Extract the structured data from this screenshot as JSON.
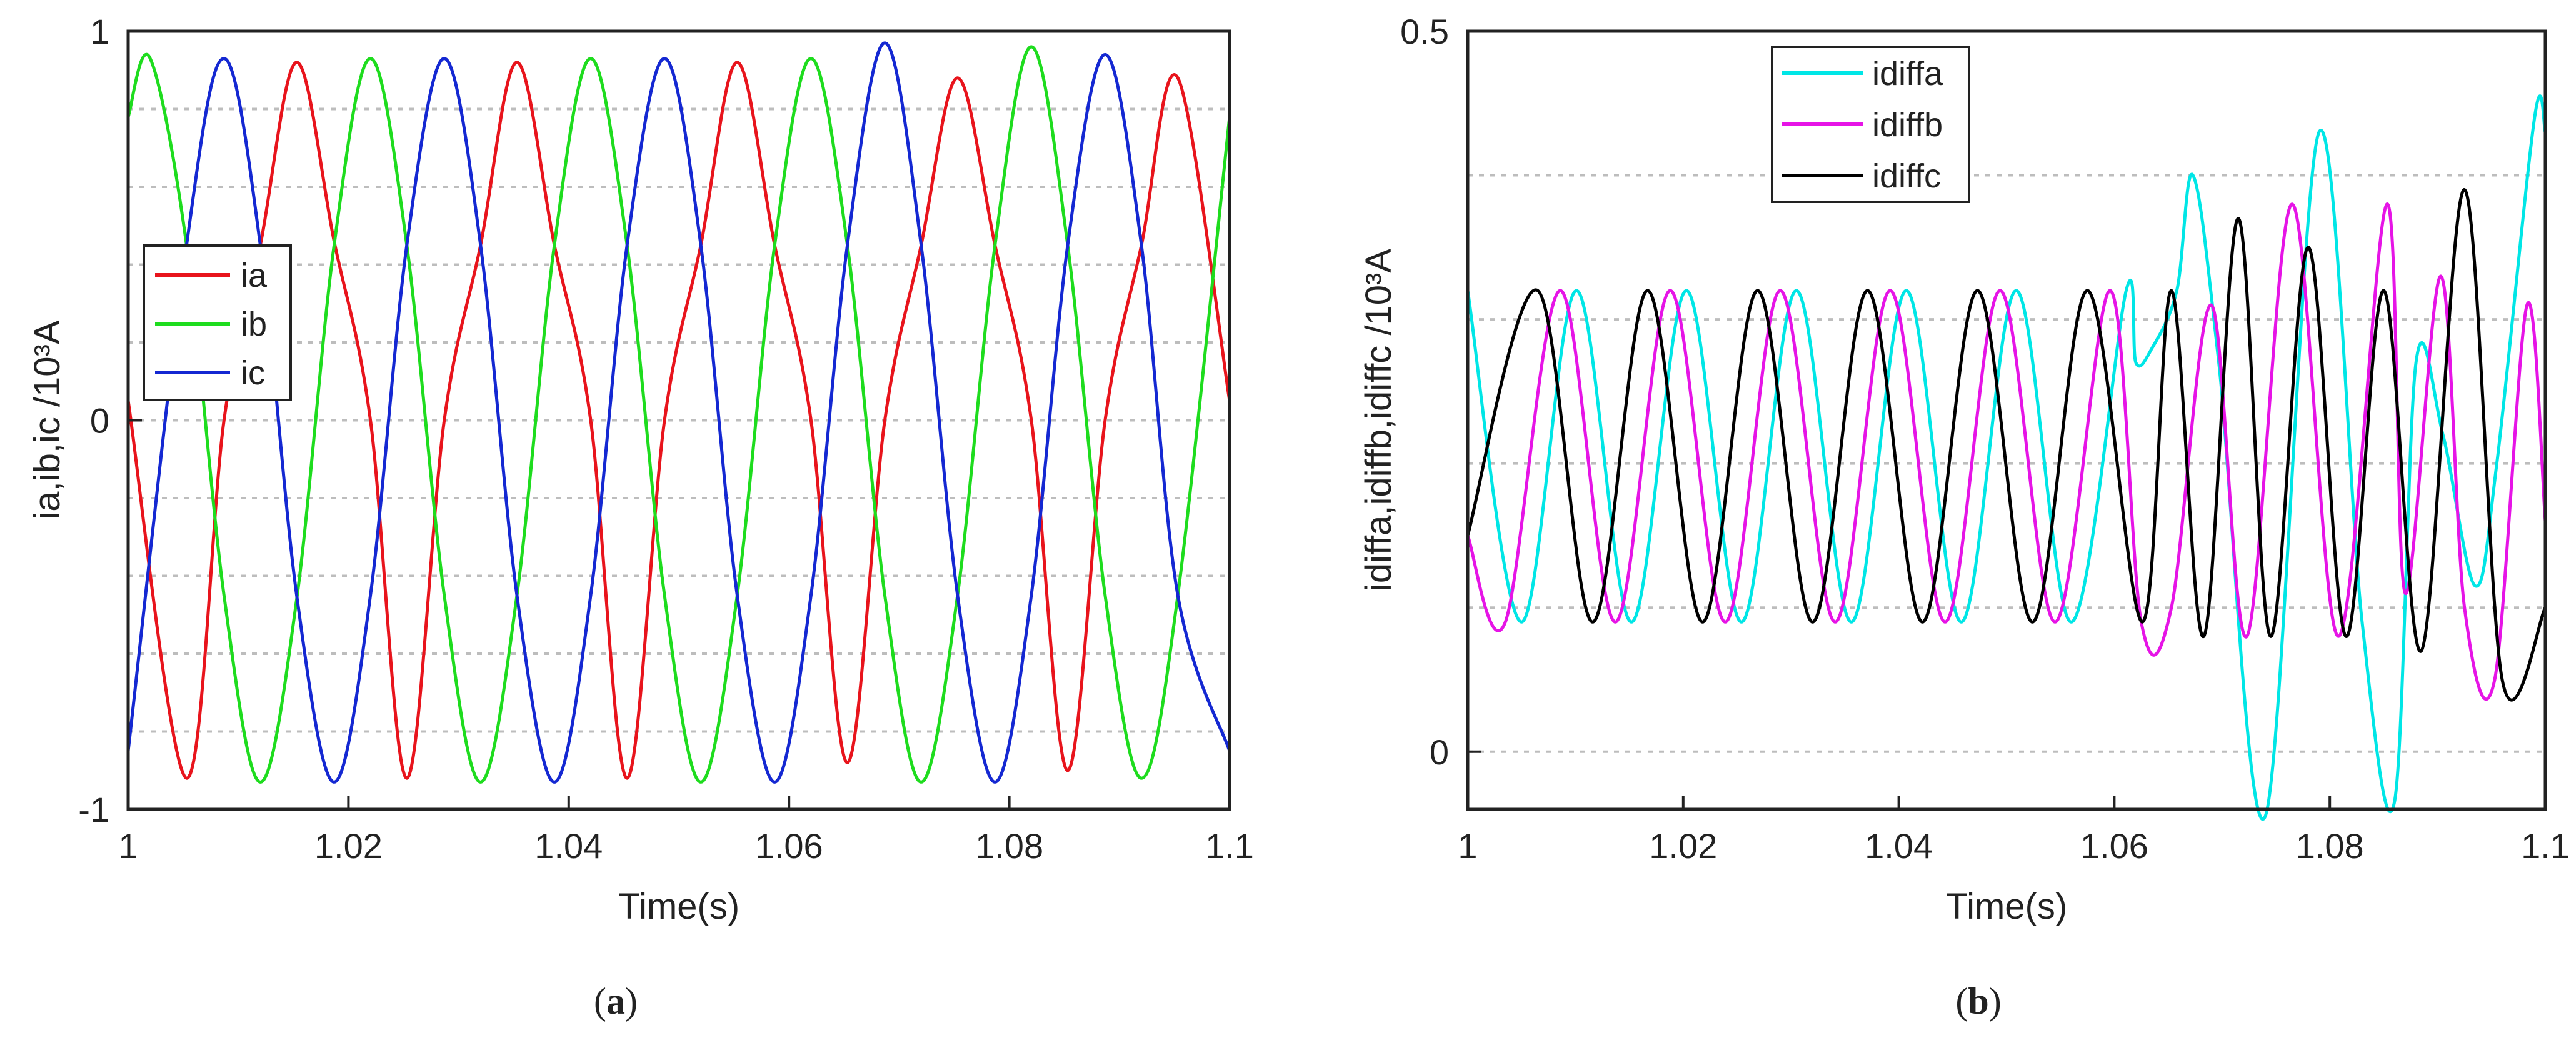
{
  "chart_data": [
    {
      "type": "line",
      "caption": "a",
      "xlabel": "Time(s)",
      "ylabel": "ia,ib,ic /10³A",
      "xlim": [
        1.0,
        1.1
      ],
      "ylim": [
        -1,
        1
      ],
      "xticks": [
        "1",
        "1.02",
        "1.04",
        "1.06",
        "1.08",
        "1.1"
      ],
      "yticks": [
        "-1",
        "0",
        "1"
      ],
      "grid_y": [
        -0.8,
        -0.6,
        -0.4,
        -0.2,
        0,
        0.2,
        0.4,
        0.6,
        0.8
      ],
      "legend_position": "upper-left",
      "series": [
        {
          "name": "ia",
          "color": "#e8141c",
          "x": [
            1.0,
            1.0053,
            1.0087,
            1.012,
            1.0153,
            1.0187,
            1.022,
            1.0253,
            1.0287,
            1.032,
            1.0353,
            1.0387,
            1.042,
            1.0453,
            1.0487,
            1.052,
            1.0553,
            1.0587,
            1.062,
            1.0653,
            1.0687,
            1.072,
            1.0753,
            1.0787,
            1.082,
            1.0853,
            1.0887,
            1.092,
            1.0953,
            1.1
          ],
          "y": [
            0.05,
            -0.92,
            0.0,
            0.45,
            0.92,
            0.46,
            0.0,
            -0.92,
            0.0,
            0.45,
            0.92,
            0.45,
            0.0,
            -0.92,
            0.0,
            0.45,
            0.92,
            0.45,
            0.0,
            -0.88,
            0.0,
            0.45,
            0.88,
            0.45,
            0.0,
            -0.9,
            0.0,
            0.45,
            0.88,
            0.05
          ]
        },
        {
          "name": "ib",
          "color": "#1edc1e",
          "x": [
            1.0,
            1.002,
            1.0053,
            1.0087,
            1.012,
            1.0153,
            1.0187,
            1.022,
            1.0253,
            1.0287,
            1.032,
            1.0353,
            1.0387,
            1.042,
            1.0453,
            1.0487,
            1.052,
            1.0553,
            1.0587,
            1.062,
            1.0653,
            1.0687,
            1.072,
            1.0753,
            1.0787,
            1.082,
            1.0853,
            1.0887,
            1.092,
            1.0953,
            1.1
          ],
          "y": [
            0.78,
            0.93,
            0.45,
            -0.45,
            -0.93,
            -0.46,
            0.45,
            0.93,
            0.45,
            -0.45,
            -0.93,
            -0.45,
            0.45,
            0.93,
            0.45,
            -0.45,
            -0.93,
            -0.45,
            0.45,
            0.93,
            0.45,
            -0.45,
            -0.93,
            -0.45,
            0.45,
            0.96,
            0.45,
            -0.45,
            -0.92,
            -0.45,
            0.78
          ]
        },
        {
          "name": "ic",
          "color": "#1428d2",
          "x": [
            1.0,
            1.0053,
            1.0087,
            1.012,
            1.0153,
            1.0187,
            1.022,
            1.0253,
            1.0287,
            1.032,
            1.0353,
            1.0387,
            1.042,
            1.0453,
            1.0487,
            1.052,
            1.0553,
            1.0587,
            1.062,
            1.0653,
            1.0687,
            1.072,
            1.0753,
            1.0787,
            1.082,
            1.0853,
            1.0887,
            1.092,
            1.0953,
            1.1
          ],
          "y": [
            -0.85,
            0.45,
            0.93,
            0.45,
            -0.45,
            -0.93,
            -0.45,
            0.45,
            0.93,
            0.45,
            -0.45,
            -0.93,
            -0.45,
            0.45,
            0.93,
            0.45,
            -0.45,
            -0.93,
            -0.45,
            0.45,
            0.97,
            0.45,
            -0.45,
            -0.93,
            -0.45,
            0.45,
            0.94,
            0.45,
            -0.45,
            -0.85
          ]
        }
      ]
    },
    {
      "type": "line",
      "caption": "b",
      "xlabel": "Time(s)",
      "ylabel": "idiffa,idiffb,idiffc /10³A",
      "xlim": [
        1.0,
        1.1
      ],
      "ylim": [
        -0.04,
        0.5
      ],
      "xticks": [
        "1",
        "1.02",
        "1.04",
        "1.06",
        "1.08",
        "1.1"
      ],
      "yticks": [
        "0",
        "0.5"
      ],
      "grid_y": [
        0,
        0.1,
        0.2,
        0.3,
        0.4
      ],
      "legend_position": "top-center",
      "series": [
        {
          "name": "idiffa",
          "color": "#00e6e6",
          "x": [
            1.0,
            1.005,
            1.0101,
            1.0152,
            1.0203,
            1.0254,
            1.0305,
            1.0356,
            1.0407,
            1.0458,
            1.0509,
            1.056,
            1.0611,
            1.062,
            1.0635,
            1.0658,
            1.0673,
            1.0697,
            1.074,
            1.079,
            1.083,
            1.086,
            1.088,
            1.0905,
            1.0935,
            1.0955,
            1.099,
            1.1
          ],
          "y": [
            0.32,
            0.09,
            0.32,
            0.09,
            0.32,
            0.09,
            0.32,
            0.09,
            0.32,
            0.09,
            0.32,
            0.09,
            0.32,
            0.27,
            0.28,
            0.32,
            0.4,
            0.27,
            -0.045,
            0.43,
            0.09,
            -0.035,
            0.27,
            0.22,
            0.115,
            0.2,
            0.44,
            0.43
          ]
        },
        {
          "name": "idiffb",
          "color": "#e614e6",
          "x": [
            1.0,
            1.0035,
            1.0086,
            1.0137,
            1.0188,
            1.0239,
            1.029,
            1.0341,
            1.0392,
            1.0443,
            1.0494,
            1.0545,
            1.0596,
            1.0625,
            1.0653,
            1.069,
            1.0723,
            1.0765,
            1.0808,
            1.0853,
            1.087,
            1.0903,
            1.0925,
            1.0953,
            1.0983,
            1.1
          ],
          "y": [
            0.15,
            0.09,
            0.32,
            0.09,
            0.32,
            0.09,
            0.32,
            0.09,
            0.32,
            0.09,
            0.32,
            0.09,
            0.32,
            0.09,
            0.1,
            0.31,
            0.08,
            0.38,
            0.08,
            0.38,
            0.11,
            0.33,
            0.1,
            0.05,
            0.31,
            0.16
          ]
        },
        {
          "name": "idiffc",
          "color": "#000000",
          "x": [
            1.0,
            1.0065,
            1.0116,
            1.0167,
            1.0218,
            1.0269,
            1.032,
            1.0371,
            1.0422,
            1.0473,
            1.0524,
            1.0575,
            1.0626,
            1.0653,
            1.0683,
            1.0715,
            1.0745,
            1.078,
            1.0815,
            1.085,
            1.0885,
            1.0925,
            1.096,
            1.1
          ],
          "y": [
            0.15,
            0.32,
            0.09,
            0.32,
            0.09,
            0.32,
            0.09,
            0.32,
            0.09,
            0.32,
            0.09,
            0.32,
            0.09,
            0.32,
            0.08,
            0.37,
            0.08,
            0.35,
            0.08,
            0.32,
            0.07,
            0.39,
            0.05,
            0.1
          ]
        }
      ]
    }
  ]
}
